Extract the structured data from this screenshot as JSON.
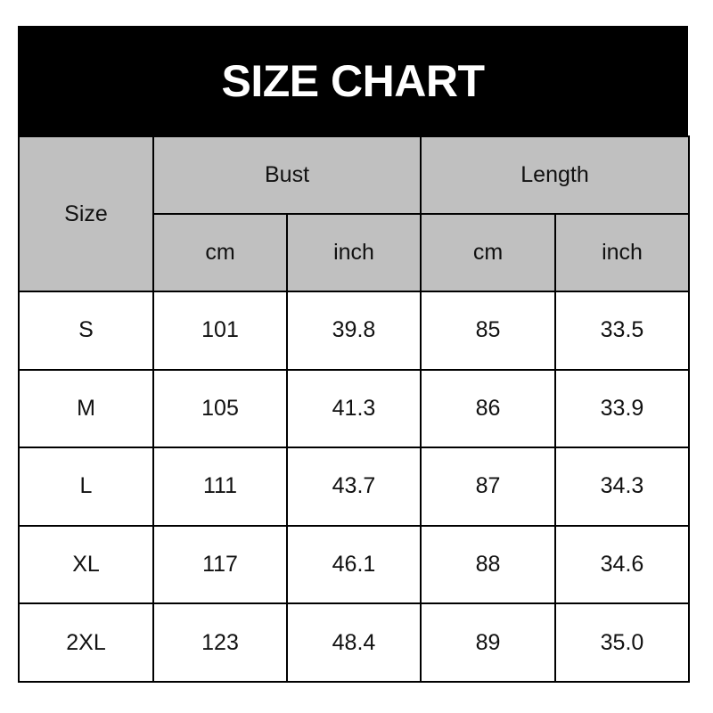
{
  "title": "SIZE CHART",
  "headers": {
    "size": "Size",
    "bust": "Bust",
    "length": "Length",
    "cm": "cm",
    "inch": "inch"
  },
  "colors": {
    "title_bg": "#000000",
    "header_bg": "#c0c0c0"
  },
  "rows": [
    {
      "size": "S",
      "bust_cm": "101",
      "bust_in": "39.8",
      "len_cm": "85",
      "len_in": "33.5"
    },
    {
      "size": "M",
      "bust_cm": "105",
      "bust_in": "41.3",
      "len_cm": "86",
      "len_in": "33.9"
    },
    {
      "size": "L",
      "bust_cm": "111",
      "bust_in": "43.7",
      "len_cm": "87",
      "len_in": "34.3"
    },
    {
      "size": "XL",
      "bust_cm": "117",
      "bust_in": "46.1",
      "len_cm": "88",
      "len_in": "34.6"
    },
    {
      "size": "2XL",
      "bust_cm": "123",
      "bust_in": "48.4",
      "len_cm": "89",
      "len_in": "35.0"
    }
  ]
}
